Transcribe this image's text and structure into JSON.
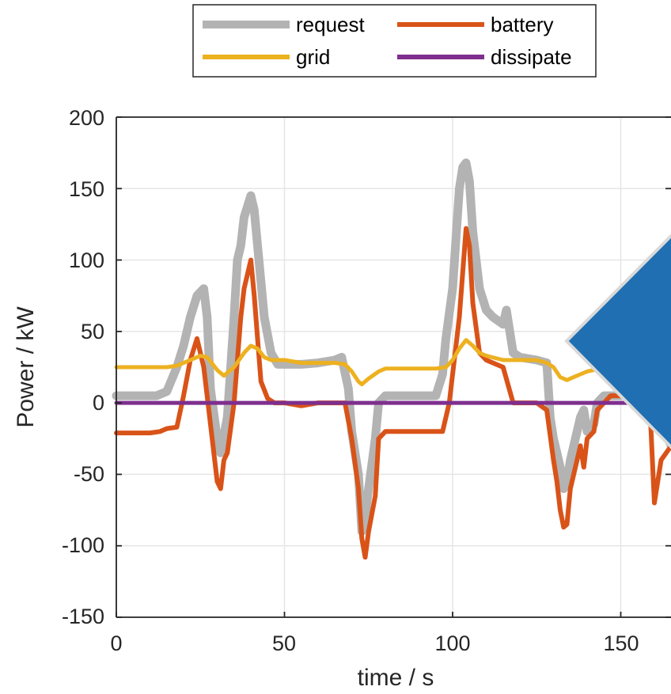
{
  "chart_data": {
    "type": "line",
    "title": "",
    "xlabel": "time / s",
    "ylabel": "Power / kW",
    "xlim": [
      0,
      165
    ],
    "ylim": [
      -150,
      200
    ],
    "xticks": [
      "0",
      "50",
      "100",
      "150"
    ],
    "yticks": [
      "200",
      "150",
      "100",
      "50",
      "0",
      "-50",
      "-100",
      "-150"
    ],
    "grid": true,
    "legend_position": "top-center",
    "series": [
      {
        "name": "request",
        "color": "#b3b3b3",
        "x": [
          0,
          5,
          12,
          15,
          18,
          20,
          22,
          24,
          26,
          27,
          28,
          30,
          31,
          33,
          35,
          36,
          37,
          38,
          40,
          41,
          42,
          44,
          46,
          48,
          50,
          55,
          60,
          65,
          67,
          69,
          70,
          72,
          73,
          74,
          75,
          77,
          78,
          80,
          85,
          95,
          97,
          98,
          100,
          102,
          103,
          104,
          105,
          106,
          108,
          110,
          112,
          115,
          116,
          118,
          120,
          125,
          128,
          129,
          130,
          131,
          132,
          133,
          134,
          135,
          137,
          138,
          139,
          140,
          142,
          143,
          145,
          147,
          150,
          155,
          158,
          160,
          162,
          165
        ],
        "values": [
          5,
          5,
          5,
          8,
          25,
          40,
          60,
          75,
          80,
          60,
          10,
          -25,
          -35,
          -10,
          60,
          100,
          110,
          130,
          145,
          135,
          110,
          60,
          35,
          27,
          27,
          27,
          28,
          30,
          32,
          10,
          -20,
          -50,
          -90,
          -80,
          -60,
          -25,
          0,
          5,
          5,
          5,
          20,
          45,
          80,
          150,
          165,
          168,
          155,
          120,
          80,
          65,
          60,
          55,
          65,
          35,
          32,
          30,
          28,
          -10,
          -25,
          -35,
          -45,
          -60,
          -55,
          -40,
          -20,
          -10,
          -5,
          -20,
          -15,
          0,
          5,
          5,
          5,
          10,
          20,
          10,
          -15,
          -30
        ]
      },
      {
        "name": "battery",
        "color": "#d95319",
        "x": [
          0,
          5,
          10,
          13,
          15,
          18,
          20,
          22,
          24,
          26,
          28,
          30,
          31,
          32,
          33,
          35,
          37,
          38,
          40,
          41,
          42,
          43,
          45,
          47,
          50,
          55,
          60,
          65,
          68,
          70,
          72,
          73,
          74,
          75,
          77,
          78,
          80,
          85,
          95,
          97,
          99,
          100,
          102,
          104,
          105,
          106,
          108,
          110,
          112,
          115,
          118,
          120,
          125,
          128,
          130,
          131,
          132,
          133,
          134,
          135,
          137,
          138,
          139,
          140,
          142,
          143,
          145,
          147,
          150,
          155,
          157,
          158,
          159,
          160,
          162,
          165
        ],
        "values": [
          -21,
          -21,
          -21,
          -20,
          -18,
          -17,
          5,
          30,
          45,
          25,
          -15,
          -55,
          -60,
          -40,
          -35,
          0,
          60,
          80,
          100,
          75,
          45,
          15,
          3,
          0,
          0,
          -2,
          0,
          0,
          0,
          -25,
          -60,
          -95,
          -108,
          -90,
          -65,
          -25,
          -20,
          -20,
          -20,
          -20,
          0,
          20,
          60,
          122,
          110,
          70,
          35,
          30,
          28,
          25,
          0,
          0,
          0,
          -5,
          -40,
          -55,
          -75,
          -87,
          -85,
          -60,
          -40,
          -30,
          -45,
          -25,
          -20,
          -5,
          0,
          5,
          5,
          5,
          10,
          30,
          -20,
          -70,
          -40,
          -30
        ]
      },
      {
        "name": "grid",
        "color": "#edb120",
        "x": [
          0,
          10,
          15,
          18,
          20,
          22,
          25,
          27,
          30,
          32,
          35,
          38,
          40,
          42,
          44,
          46,
          48,
          50,
          55,
          60,
          65,
          68,
          70,
          72,
          73,
          75,
          78,
          80,
          85,
          90,
          95,
          98,
          100,
          102,
          104,
          106,
          108,
          110,
          115,
          120,
          125,
          128,
          130,
          132,
          134,
          136,
          138,
          140,
          142,
          145,
          147
        ],
        "values": [
          25,
          25,
          25,
          26,
          28,
          30,
          33,
          32,
          23,
          19,
          25,
          35,
          40,
          38,
          32,
          30,
          30,
          30,
          28,
          28,
          28,
          27,
          22,
          15,
          13,
          17,
          22,
          24,
          24,
          24,
          24,
          25,
          30,
          38,
          44,
          40,
          35,
          33,
          30,
          30,
          30,
          28,
          25,
          18,
          16,
          18,
          20,
          22,
          23,
          24,
          25
        ]
      },
      {
        "name": "dissipate",
        "color": "#7e2f8e",
        "x": [
          0,
          165
        ],
        "values": [
          0,
          0
        ]
      }
    ]
  },
  "overlay": {
    "shape": "diamond",
    "color": "#1f6fb2"
  }
}
